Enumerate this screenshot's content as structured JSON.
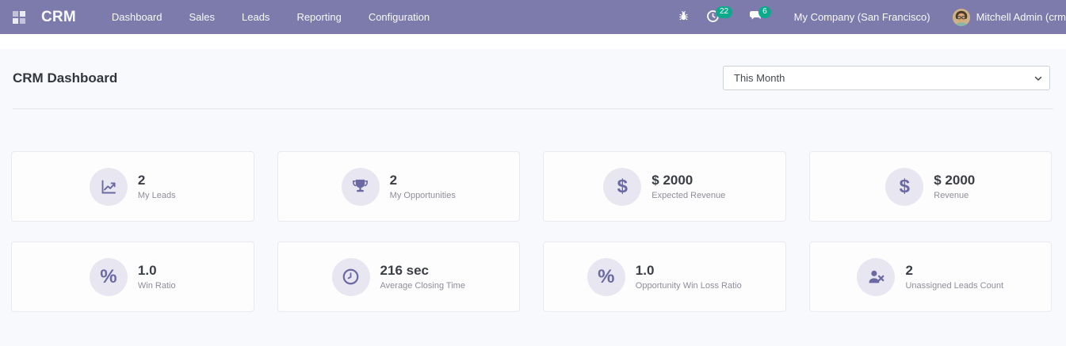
{
  "navbar": {
    "app_name": "CRM",
    "menu_items": [
      {
        "id": "dashboard",
        "label": "Dashboard"
      },
      {
        "id": "sales",
        "label": "Sales"
      },
      {
        "id": "leads",
        "label": "Leads"
      },
      {
        "id": "reporting",
        "label": "Reporting"
      },
      {
        "id": "configuration",
        "label": "Configuration"
      }
    ],
    "activity_badge": "22",
    "message_badge": "6",
    "company_name": "My Company (San Francisco)",
    "user_name": "Mitchell Admin (crm",
    "colors": {
      "navbar_bg": "#7c7bac",
      "badge_bg": "#0baa8d"
    }
  },
  "header": {
    "title": "CRM Dashboard",
    "period_filter": "This Month"
  },
  "kpi_cards": [
    {
      "icon": "line-chart",
      "value": "2",
      "label": "My Leads"
    },
    {
      "icon": "trophy",
      "value": "2",
      "label": "My Opportunities"
    },
    {
      "icon": "dollar",
      "value": "$ 2000",
      "label": "Expected Revenue"
    },
    {
      "icon": "dollar",
      "value": "$ 2000",
      "label": "Revenue"
    },
    {
      "icon": "percent",
      "value": "1.0",
      "label": "Win Ratio"
    },
    {
      "icon": "clock",
      "value": "216 sec",
      "label": "Average Closing Time"
    },
    {
      "icon": "percent",
      "value": "1.0",
      "label": "Opportunity Win Loss Ratio"
    },
    {
      "icon": "user-times",
      "value": "2",
      "label": "Unassigned Leads Count"
    }
  ],
  "theme": {
    "accent_purple": "#6b69a3",
    "icon_circle_bg": "#e8e7f1",
    "card_bg": "#fdfdfe",
    "content_bg": "#f8f9fc"
  }
}
